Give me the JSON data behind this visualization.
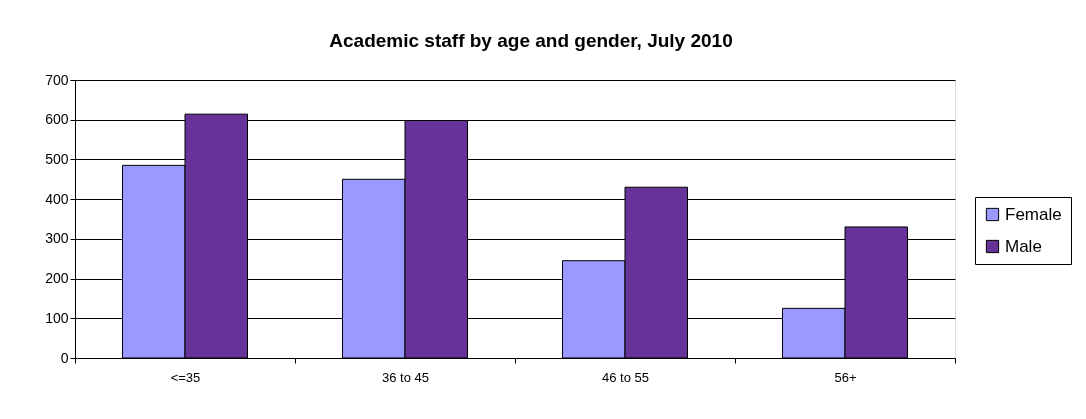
{
  "chart_data": {
    "type": "bar",
    "title": "Academic staff by age and gender, July 2010",
    "categories": [
      "<=35",
      "36 to 45",
      "46 to 55",
      "56+"
    ],
    "series": [
      {
        "name": "Female",
        "color": "#9999ff",
        "values": [
          485,
          450,
          245,
          125
        ]
      },
      {
        "name": "Male",
        "color": "#663399",
        "values": [
          614,
          598,
          430,
          330
        ]
      }
    ],
    "ylim": [
      0,
      700
    ],
    "yticks": [
      0,
      100,
      200,
      300,
      400,
      500,
      600,
      700
    ],
    "grid": "y",
    "legend": "right"
  }
}
